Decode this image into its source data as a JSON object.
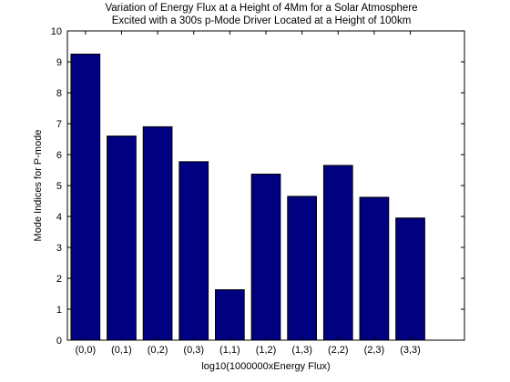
{
  "chart_data": {
    "type": "bar",
    "title": [
      "Variation of Energy Flux at a Height of 4Mm for a Solar Atmosphere",
      "Excited with a 300s p-Mode Driver Located at a Height of 100km"
    ],
    "xlabel": "log10(1000000xEnergy Flux)",
    "ylabel": "Mode Indices for P-mode",
    "categories": [
      "(0,0)",
      "(0,1)",
      "(0,2)",
      "(0,3)",
      "(1,1)",
      "(1,2)",
      "(1,3)",
      "(2,2)",
      "(2,3)",
      "(3,3)"
    ],
    "values": [
      9.25,
      6.6,
      6.9,
      5.77,
      1.63,
      5.37,
      4.65,
      5.65,
      4.62,
      3.95
    ],
    "ylim": [
      0,
      10
    ],
    "yticks": [
      "0",
      "1",
      "2",
      "3",
      "4",
      "5",
      "6",
      "7",
      "8",
      "9",
      "10"
    ],
    "bar_color": "#000080",
    "grid": false,
    "legend": "none"
  }
}
